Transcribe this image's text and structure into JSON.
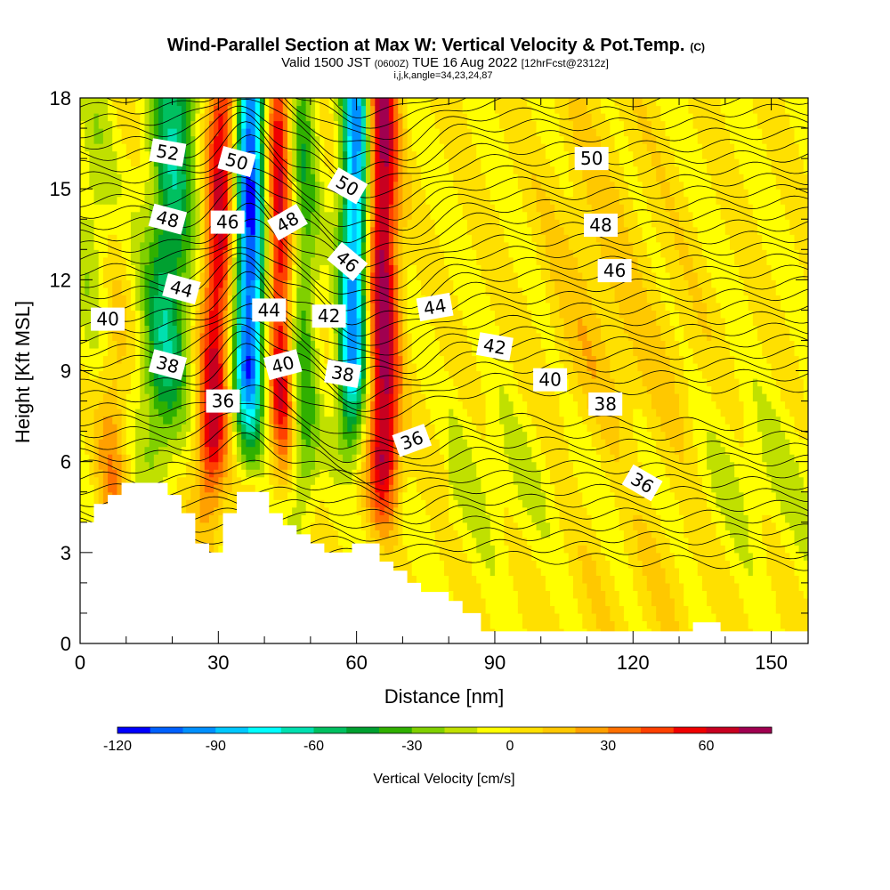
{
  "chart_data": {
    "type": "heatmap",
    "title": "Wind-Parallel Section at Max W: Vertical Velocity & Pot.Temp.",
    "title_mark": "(C)",
    "subtitle_parts": {
      "valid": "Valid 1500 JST",
      "utc": "(0600Z)",
      "date": "TUE 16 Aug 2022",
      "fcst": "[12hrFcst@2312z]"
    },
    "info_line": "i,j,k,angle=34,23,24,87",
    "xlabel": "Distance [nm]",
    "ylabel": "Height [Kft MSL]",
    "xlim": [
      0,
      158
    ],
    "ylim": [
      0,
      18
    ],
    "x_ticks": [
      "0",
      "30",
      "60",
      "90",
      "120",
      "150"
    ],
    "y_ticks": [
      "0",
      "3",
      "6",
      "9",
      "12",
      "15",
      "18"
    ],
    "colorbar": {
      "label": "Vertical Velocity [cm/s]",
      "tick_labels": [
        "-120",
        "-90",
        "-60",
        "-30",
        "0",
        "30",
        "60"
      ],
      "range": [
        -120,
        80
      ],
      "step": 10,
      "colors": [
        "#0000ff",
        "#0060ff",
        "#0090ff",
        "#00c8ff",
        "#00ffff",
        "#00e0b0",
        "#00c060",
        "#00a030",
        "#30b000",
        "#80d000",
        "#c0e000",
        "#ffff00",
        "#ffe000",
        "#ffc800",
        "#ffa000",
        "#ff7000",
        "#ff4000",
        "#f00000",
        "#c80020",
        "#a00050",
        "#700090"
      ]
    },
    "terrain_kft": [
      [
        0,
        4
      ],
      [
        3,
        4
      ],
      [
        3,
        4.6
      ],
      [
        6,
        4.6
      ],
      [
        6,
        4.9
      ],
      [
        9,
        4.9
      ],
      [
        9,
        5.3
      ],
      [
        19,
        5.3
      ],
      [
        19,
        4.9
      ],
      [
        22,
        4.9
      ],
      [
        22,
        4.3
      ],
      [
        25,
        4.3
      ],
      [
        25,
        3.3
      ],
      [
        28,
        3.3
      ],
      [
        28,
        3
      ],
      [
        31,
        3
      ],
      [
        31,
        4.3
      ],
      [
        34,
        4.3
      ],
      [
        34,
        5
      ],
      [
        41,
        5
      ],
      [
        41,
        4.3
      ],
      [
        44,
        4.3
      ],
      [
        44,
        3.9
      ],
      [
        47,
        3.9
      ],
      [
        47,
        3.6
      ],
      [
        50,
        3.6
      ],
      [
        50,
        3.3
      ],
      [
        53,
        3.3
      ],
      [
        53,
        3
      ],
      [
        59,
        3
      ],
      [
        59,
        3.3
      ],
      [
        65,
        3.3
      ],
      [
        65,
        2.7
      ],
      [
        68,
        2.7
      ],
      [
        68,
        2.4
      ],
      [
        71,
        2.4
      ],
      [
        71,
        2
      ],
      [
        74,
        2
      ],
      [
        74,
        1.7
      ],
      [
        80,
        1.7
      ],
      [
        80,
        1.4
      ],
      [
        83,
        1.4
      ],
      [
        83,
        1
      ],
      [
        87,
        1
      ],
      [
        87,
        0.4
      ],
      [
        133,
        0.4
      ],
      [
        133,
        0.7
      ],
      [
        139,
        0.7
      ],
      [
        139,
        0.4
      ],
      [
        154,
        0.4
      ],
      [
        154,
        0.4
      ],
      [
        158,
        0.4
      ]
    ],
    "contour_labels": [
      {
        "text": "52",
        "x": 19,
        "y": 16.2,
        "rot": 10
      },
      {
        "text": "50",
        "x": 34,
        "y": 15.9,
        "rot": 15
      },
      {
        "text": "50",
        "x": 58,
        "y": 15.1,
        "rot": 30
      },
      {
        "text": "50",
        "x": 111,
        "y": 16.0,
        "rot": 0
      },
      {
        "text": "48",
        "x": 19,
        "y": 14.0,
        "rot": 15
      },
      {
        "text": "46",
        "x": 32,
        "y": 13.9,
        "rot": 0
      },
      {
        "text": "48",
        "x": 45,
        "y": 13.9,
        "rot": -30
      },
      {
        "text": "48",
        "x": 113,
        "y": 13.8,
        "rot": 0
      },
      {
        "text": "46",
        "x": 58,
        "y": 12.6,
        "rot": 40
      },
      {
        "text": "46",
        "x": 116,
        "y": 12.3,
        "rot": 0
      },
      {
        "text": "44",
        "x": 22,
        "y": 11.7,
        "rot": 15
      },
      {
        "text": "44",
        "x": 41,
        "y": 11.0,
        "rot": 0
      },
      {
        "text": "42",
        "x": 54,
        "y": 10.8,
        "rot": 0
      },
      {
        "text": "44",
        "x": 77,
        "y": 11.1,
        "rot": -10
      },
      {
        "text": "40",
        "x": 6,
        "y": 10.7,
        "rot": 0
      },
      {
        "text": "38",
        "x": 19,
        "y": 9.2,
        "rot": 15
      },
      {
        "text": "40",
        "x": 44,
        "y": 9.2,
        "rot": -15
      },
      {
        "text": "38",
        "x": 57,
        "y": 8.9,
        "rot": 10
      },
      {
        "text": "42",
        "x": 90,
        "y": 9.8,
        "rot": 10
      },
      {
        "text": "40",
        "x": 102,
        "y": 8.7,
        "rot": 0
      },
      {
        "text": "38",
        "x": 114,
        "y": 7.9,
        "rot": 0
      },
      {
        "text": "36",
        "x": 31,
        "y": 8.0,
        "rot": 0
      },
      {
        "text": "36",
        "x": 72,
        "y": 6.7,
        "rot": -20
      },
      {
        "text": "36",
        "x": 122,
        "y": 5.3,
        "rot": 30
      }
    ]
  }
}
